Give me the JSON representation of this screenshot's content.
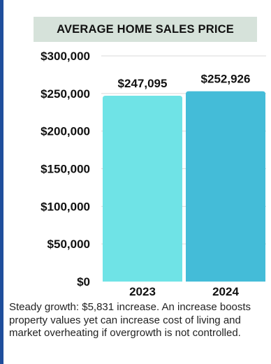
{
  "chart_data": {
    "type": "bar",
    "title": "AVERAGE HOME SALES PRICE",
    "categories": [
      "2023",
      "2024"
    ],
    "values": [
      247095,
      252926
    ],
    "value_labels": [
      "$247,095",
      "$252,926"
    ],
    "y_ticks": [
      "$0",
      "$50,000",
      "$100,000",
      "$150,000",
      "$200,000",
      "$250,000",
      "$300,000"
    ],
    "ylim": [
      0,
      300000
    ],
    "grid": true,
    "bar_colors": [
      "#6fe3e6",
      "#44bcd8"
    ],
    "grid_color": "#d9d9d9"
  },
  "caption": "Steady growth: $5,831 increase. An increase boosts property values yet can increase cost of living and market overheating if overgrowth is not controlled.",
  "colors": {
    "border": "#1f4e9c",
    "title_background": "#d6e2da"
  }
}
